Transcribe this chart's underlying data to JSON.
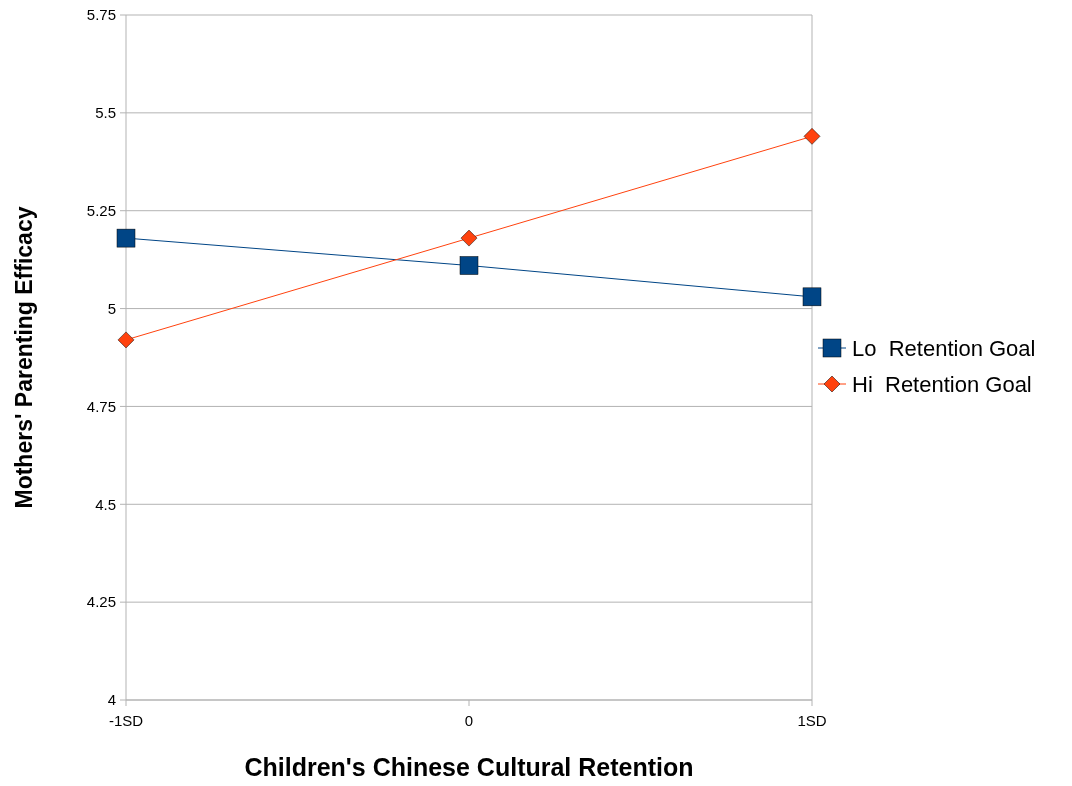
{
  "chart_data": {
    "type": "line",
    "xlabel": "Children's Chinese Cultural Retention",
    "ylabel": "Mothers' Parenting Efficacy",
    "categories": [
      "-1SD",
      "0",
      "1SD"
    ],
    "series": [
      {
        "name": "Lo  Retention Goal",
        "color": "#004586",
        "marker": "square",
        "values": [
          5.18,
          5.11,
          5.03
        ]
      },
      {
        "name": "Hi  Retention Goal",
        "color": "#ff420e",
        "marker": "diamond",
        "values": [
          4.92,
          5.18,
          5.44
        ]
      }
    ],
    "ylim": [
      4,
      5.75
    ],
    "yticks": [
      4,
      {
        "value": 4.25,
        "label": "4.25"
      },
      {
        "value": 4.5,
        "label": "4.5"
      },
      {
        "value": 4.75,
        "label": "4.75"
      },
      5,
      {
        "value": 5.25,
        "label": "5.25"
      },
      {
        "value": 5.5,
        "label": "5.5"
      },
      {
        "value": 5.75,
        "label": "5.75"
      }
    ],
    "grid": "y",
    "legend": "right"
  }
}
